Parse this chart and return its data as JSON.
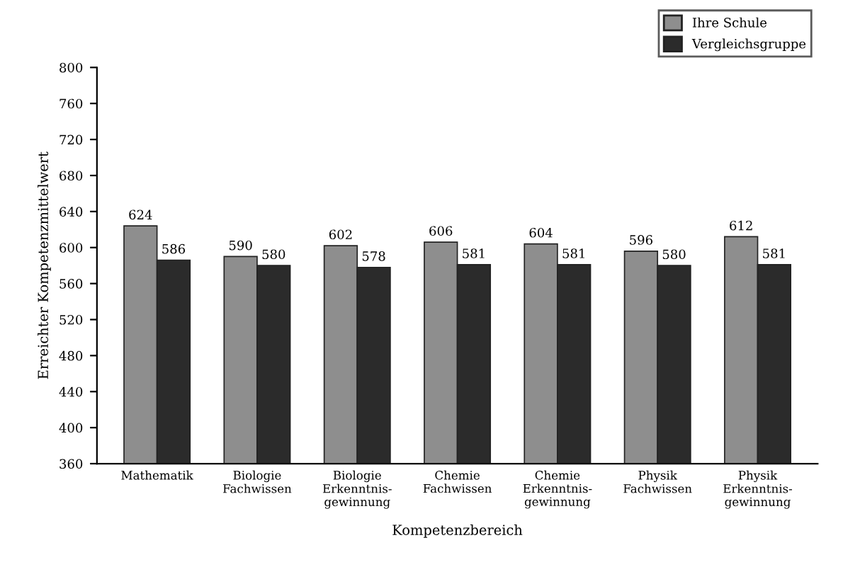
{
  "chart_data": {
    "type": "bar",
    "categories": [
      "Mathematik",
      "Biologie\nFachwissen",
      "Biologie\nErkenntnis-\ngewinnung",
      "Chemie\nFachwissen",
      "Chemie\nErkenntnis-\ngewinnung",
      "Physik\nFachwissen",
      "Physik\nErkenntnis-\ngewinnung"
    ],
    "series": [
      {
        "name": "Ihre Schule",
        "color": "#8e8e8e",
        "values": [
          624,
          590,
          602,
          606,
          604,
          596,
          612
        ]
      },
      {
        "name": "Vergleichsgruppe",
        "color": "#2b2b2b",
        "values": [
          586,
          580,
          578,
          581,
          581,
          580,
          581
        ]
      }
    ],
    "xlabel": "Kompetenzbereich",
    "ylabel": "Erreichter Kompetenzmittelwert",
    "ylim": [
      360,
      800
    ],
    "yticks": [
      360,
      400,
      440,
      480,
      520,
      560,
      600,
      640,
      680,
      720,
      760,
      800
    ],
    "data_labels": true,
    "legend": "top right",
    "grid": false
  }
}
